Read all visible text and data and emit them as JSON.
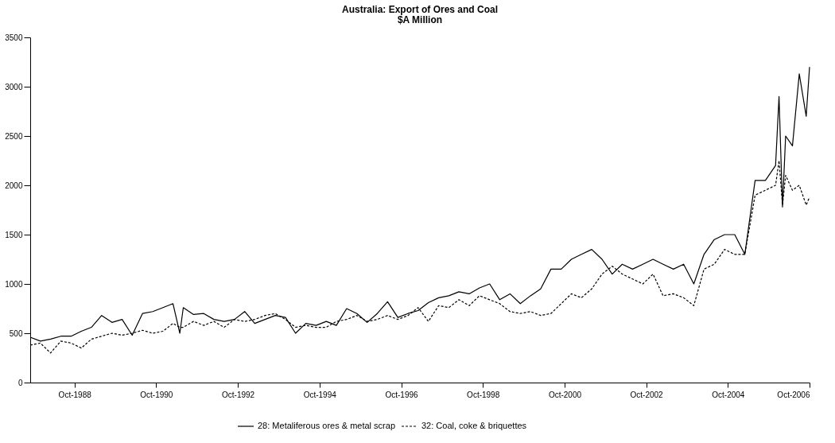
{
  "chart_data": {
    "type": "line",
    "title": "Australia: Export of Ores and Coal",
    "subtitle": "$A Million",
    "x": [
      "1987-09",
      "1987-12",
      "1988-03",
      "1988-06",
      "1988-09",
      "1988-12",
      "1989-03",
      "1989-06",
      "1989-09",
      "1989-12",
      "1990-03",
      "1990-06",
      "1990-09",
      "1990-12",
      "1991-03",
      "1991-05",
      "1991-06",
      "1991-09",
      "1991-12",
      "1992-03",
      "1992-06",
      "1992-09",
      "1992-12",
      "1993-03",
      "1993-06",
      "1993-09",
      "1993-12",
      "1994-03",
      "1994-06",
      "1994-09",
      "1994-12",
      "1995-03",
      "1995-06",
      "1995-09",
      "1995-12",
      "1996-03",
      "1996-06",
      "1996-09",
      "1996-12",
      "1997-03",
      "1997-06",
      "1997-09",
      "1997-12",
      "1998-03",
      "1998-06",
      "1998-09",
      "1998-12",
      "1999-03",
      "1999-06",
      "1999-09",
      "1999-12",
      "2000-03",
      "2000-06",
      "2000-09",
      "2000-12",
      "2001-03",
      "2001-06",
      "2001-09",
      "2001-12",
      "2002-03",
      "2002-06",
      "2002-09",
      "2002-12",
      "2003-03",
      "2003-06",
      "2003-09",
      "2003-12",
      "2004-03",
      "2004-06",
      "2004-09",
      "2004-12",
      "2005-03",
      "2005-06",
      "2005-09",
      "2005-12",
      "2006-01",
      "2006-02",
      "2006-03",
      "2006-05",
      "2006-07",
      "2006-09",
      "2006-10"
    ],
    "series": [
      {
        "name": "28: Metaliferous ores & metal scrap",
        "color": "#000000",
        "line_style": "solid",
        "values": [
          460,
          420,
          440,
          470,
          470,
          520,
          560,
          680,
          610,
          640,
          480,
          700,
          720,
          760,
          800,
          500,
          760,
          690,
          700,
          640,
          620,
          640,
          720,
          600,
          640,
          680,
          660,
          500,
          600,
          580,
          620,
          580,
          750,
          700,
          610,
          700,
          820,
          660,
          700,
          730,
          810,
          860,
          880,
          920,
          900,
          960,
          1000,
          840,
          900,
          800,
          880,
          950,
          1150,
          1150,
          1250,
          1300,
          1350,
          1250,
          1100,
          1200,
          1150,
          1200,
          1250,
          1200,
          1150,
          1200,
          1000,
          1300,
          1450,
          1500,
          1500,
          1300,
          2050,
          2050,
          2200,
          2900,
          1780,
          2500,
          2400,
          3130,
          2700,
          3200
        ]
      },
      {
        "name": "32: Coal, coke & briquettes",
        "color": "#000000",
        "line_style": "dashed",
        "values": [
          380,
          400,
          300,
          420,
          400,
          350,
          440,
          470,
          500,
          480,
          500,
          530,
          500,
          520,
          600,
          560,
          560,
          620,
          580,
          620,
          560,
          640,
          620,
          640,
          680,
          700,
          640,
          560,
          580,
          560,
          560,
          620,
          640,
          680,
          620,
          640,
          680,
          640,
          680,
          760,
          620,
          780,
          760,
          840,
          780,
          880,
          840,
          800,
          720,
          700,
          720,
          680,
          700,
          800,
          900,
          860,
          950,
          1100,
          1180,
          1100,
          1050,
          1000,
          1100,
          880,
          900,
          860,
          780,
          1150,
          1200,
          1350,
          1300,
          1300,
          1900,
          1950,
          2000,
          2250,
          1800,
          2100,
          1950,
          2000,
          1800,
          1880
        ]
      }
    ],
    "xlim": [
      "1987-09",
      "2006-10"
    ],
    "xticks": [
      {
        "value": "1988-10",
        "label": "Oct-1988"
      },
      {
        "value": "1990-10",
        "label": "Oct-1990"
      },
      {
        "value": "1992-10",
        "label": "Oct-1992"
      },
      {
        "value": "1994-10",
        "label": "Oct-1994"
      },
      {
        "value": "1996-10",
        "label": "Oct-1996"
      },
      {
        "value": "1998-10",
        "label": "Oct-1998"
      },
      {
        "value": "2000-10",
        "label": "Oct-2000"
      },
      {
        "value": "2002-10",
        "label": "Oct-2002"
      },
      {
        "value": "2004-10",
        "label": "Oct-2004"
      },
      {
        "value": "2006-10",
        "label": "Oct-2006"
      }
    ],
    "ylim": [
      0,
      3500
    ],
    "yticks": [
      0,
      500,
      1000,
      1500,
      2000,
      2500,
      3000,
      3500
    ],
    "grid": false,
    "legend": "bottom"
  }
}
